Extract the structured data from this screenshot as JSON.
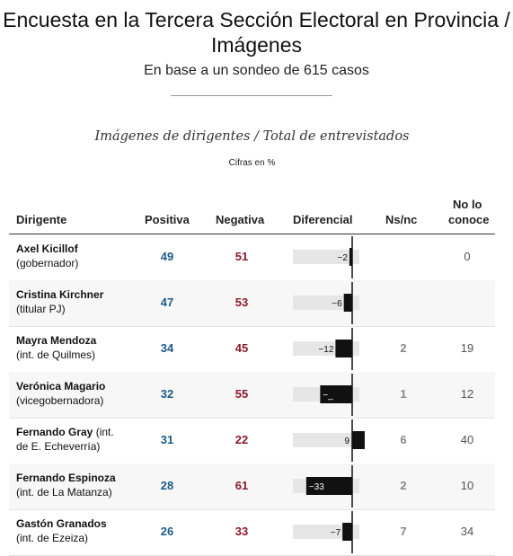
{
  "header": {
    "title": "Encuesta en la Tercera Sección Electoral en Provincia / Imágenes",
    "subtitle": "En base a un sondeo de 615 casos"
  },
  "chart_header": {
    "title": "Imágenes de dirigentes / Total de entrevistados",
    "units": "Cifras en %"
  },
  "columns": {
    "dirigente": "Dirigente",
    "positiva": "Positiva",
    "negativa": "Negativa",
    "diferencial": "Diferencial",
    "nsnc": "Ns/nc",
    "noconoce_1": "No lo",
    "noconoce_2": "conoce"
  },
  "colors": {
    "positive": "#1d5a8a",
    "negative": "#8a1b2b",
    "bar": "#111111",
    "bar_track": "#e6e6e6"
  },
  "chart_data": {
    "type": "table",
    "title": "Imágenes de dirigentes / Total de entrevistados",
    "rows": [
      {
        "name": "Axel Kicillof",
        "role": "(gobernador)",
        "positiva": "49",
        "negativa": "51",
        "diferencial": -2,
        "diferencial_label": "−2",
        "nsnc": "",
        "noconoce": "0"
      },
      {
        "name": "Cristina Kirchner",
        "role": "(titular PJ)",
        "positiva": "47",
        "negativa": "53",
        "diferencial": -6,
        "diferencial_label": "−6",
        "nsnc": "",
        "noconoce": ""
      },
      {
        "name": "Mayra Mendoza",
        "role": "(int. de Quilmes)",
        "positiva": "34",
        "negativa": "45",
        "diferencial": -12,
        "diferencial_label": "−12",
        "nsnc": "2",
        "noconoce": "19"
      },
      {
        "name": "Verónica Magario",
        "role": "(vicegobernadora)",
        "positiva": "32",
        "negativa": "55",
        "diferencial": -23,
        "diferencial_label": "−_",
        "nsnc": "1",
        "noconoce": "12"
      },
      {
        "name": "Fernando Gray",
        "role": "(int. de E. Echeverría)",
        "name_line1": "Fernando Gray (int.",
        "name_line2": "de E. Echeverría)",
        "positiva": "31",
        "negativa": "22",
        "diferencial": 9,
        "diferencial_label": "9",
        "nsnc": "6",
        "noconoce": "40"
      },
      {
        "name": "Fernando Espinoza",
        "role": "(int. de La Matanza)",
        "positiva": "28",
        "negativa": "61",
        "diferencial": -33,
        "diferencial_label": "−33",
        "nsnc": "2",
        "noconoce": "10"
      },
      {
        "name": "Gastón Granados",
        "role": "(int. de Ezeiza)",
        "positiva": "26",
        "negativa": "33",
        "diferencial": -7,
        "diferencial_label": "−7",
        "nsnc": "7",
        "noconoce": "34"
      }
    ]
  }
}
